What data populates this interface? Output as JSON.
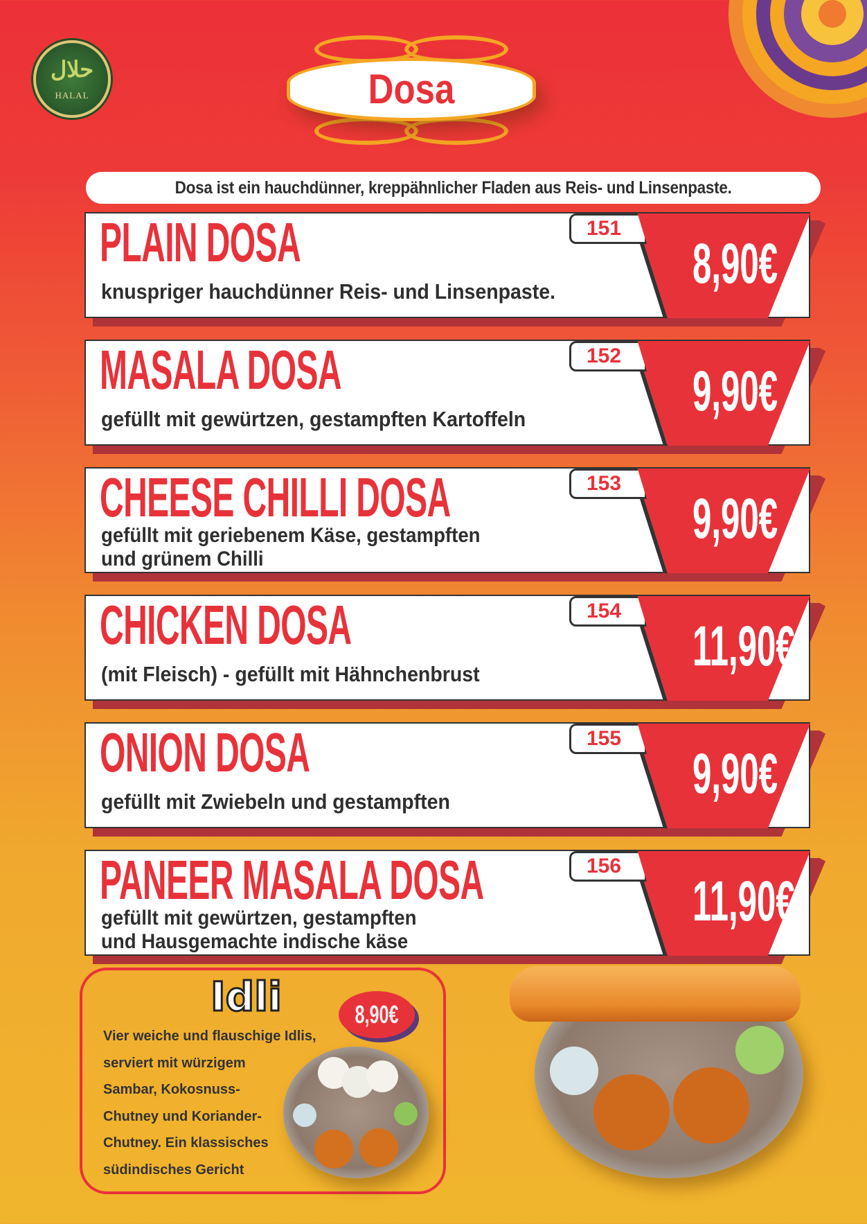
{
  "halal_badge": {
    "arabic": "حلال",
    "latin": "HALAL"
  },
  "title": "Dosa",
  "intro": "Dosa ist ein hauchdünner, kreppähnlicher Fladen aus Reis- und Linsenpaste.",
  "colors": {
    "accent_red": "#e8323a",
    "shadow": "#b0333a",
    "ornament": "#f5a623",
    "text_dark": "#2f2f2f"
  },
  "items": [
    {
      "number": "151",
      "name": "PLAIN DOSA",
      "desc": [
        "knuspriger hauchdünner Reis- und Linsenpaste."
      ],
      "price": "8,90€"
    },
    {
      "number": "152",
      "name": "MASALA DOSA",
      "desc": [
        "gefüllt mit gewürtzen, gestampften Kartoffeln"
      ],
      "price": "9,90€"
    },
    {
      "number": "153",
      "name": "CHEESE CHILLI DOSA",
      "desc": [
        "gefüllt mit geriebenem Käse, gestampften",
        "und grünem Chilli"
      ],
      "price": "9,90€"
    },
    {
      "number": "154",
      "name": "CHICKEN DOSA",
      "desc": [
        "(mit Fleisch) - gefüllt mit Hähnchenbrust"
      ],
      "price": "11,90€"
    },
    {
      "number": "155",
      "name": "ONION DOSA",
      "desc": [
        "gefüllt mit Zwiebeln und gestampften"
      ],
      "price": "9,90€"
    },
    {
      "number": "156",
      "name": "PANEER MASALA DOSA",
      "desc": [
        "gefüllt mit gewürtzen, gestampften",
        "und Hausgemachte indische käse"
      ],
      "price": "11,90€"
    }
  ],
  "idli": {
    "title": "Idli",
    "price": "8,90€",
    "desc": [
      "Vier weiche und flauschige Idlis,",
      "serviert mit würzigem",
      "Sambar, Kokosnuss-",
      "Chutney und Koriander-",
      "Chutney. Ein klassisches",
      "südindisches Gericht"
    ]
  }
}
